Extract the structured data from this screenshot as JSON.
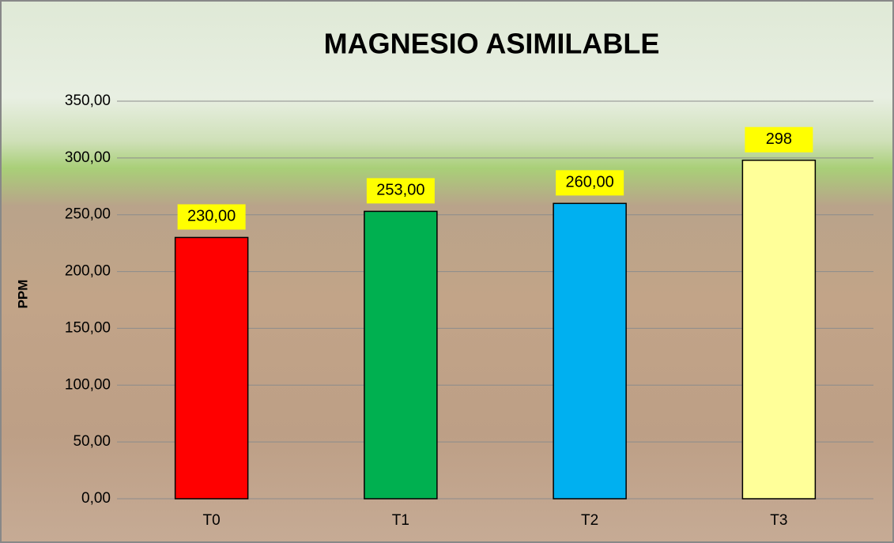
{
  "chart_data": {
    "type": "bar",
    "title": "MAGNESIO ASIMILABLE",
    "y_label": "PPM",
    "categories": [
      "T0",
      "T1",
      "T2",
      "T3"
    ],
    "values": [
      230,
      253,
      260,
      298
    ],
    "value_labels": [
      "230,00",
      "253,00",
      "260,00",
      "298"
    ],
    "colors": [
      "#ff0000",
      "#00b050",
      "#00b0f0",
      "#ffff99"
    ],
    "ylim": [
      0,
      350
    ],
    "yticks": [
      {
        "value": 0,
        "label": "0,00"
      },
      {
        "value": 50,
        "label": "50,00"
      },
      {
        "value": 100,
        "label": "100,00"
      },
      {
        "value": 150,
        "label": "150,00"
      },
      {
        "value": 200,
        "label": "200,00"
      },
      {
        "value": 250,
        "label": "250,00"
      },
      {
        "value": 300,
        "label": "300,00"
      },
      {
        "value": 350,
        "label": "350,00"
      }
    ],
    "grid": true
  }
}
